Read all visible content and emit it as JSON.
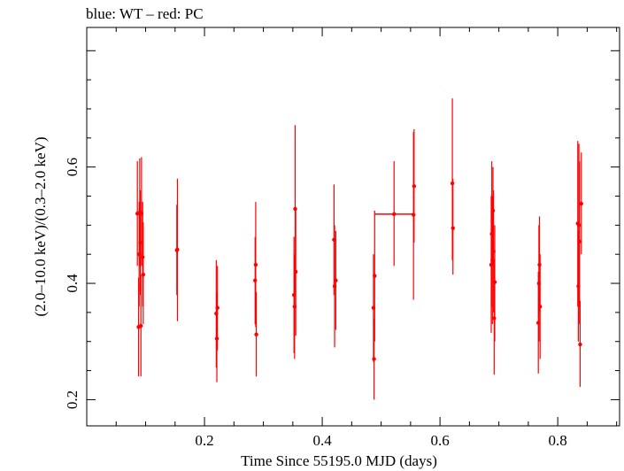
{
  "chart_data": {
    "type": "scatter",
    "title": "blue: WT – red: PC",
    "xlabel": "Time Since 55195.0 MJD (days)",
    "ylabel": "(2.0–10.0 keV)/(0.3–2.0 keV)",
    "xlim": [
      0.0,
      0.905
    ],
    "ylim": [
      0.155,
      0.84
    ],
    "x_ticks": [
      0.2,
      0.4,
      0.6,
      0.8
    ],
    "x_tick_labels": [
      "0.2",
      "0.4",
      "0.6",
      "0.8"
    ],
    "y_ticks": [
      0.2,
      0.4,
      0.6
    ],
    "y_tick_labels": [
      "0.2",
      "0.4",
      "0.6"
    ],
    "grid": false,
    "series": [
      {
        "color": "#ff0000",
        "points": [
          {
            "x": 0.086,
            "y": 0.52,
            "lo": 0.43,
            "hi": 0.61
          },
          {
            "x": 0.088,
            "y": 0.325,
            "lo": 0.24,
            "hi": 0.41
          },
          {
            "x": 0.089,
            "y": 0.45,
            "lo": 0.36,
            "hi": 0.54
          },
          {
            "x": 0.09,
            "y": 0.522,
            "lo": 0.43,
            "hi": 0.615
          },
          {
            "x": 0.091,
            "y": 0.47,
            "lo": 0.38,
            "hi": 0.56
          },
          {
            "x": 0.092,
            "y": 0.327,
            "lo": 0.24,
            "hi": 0.415
          },
          {
            "x": 0.093,
            "y": 0.52,
            "lo": 0.43,
            "hi": 0.617
          },
          {
            "x": 0.095,
            "y": 0.445,
            "lo": 0.36,
            "hi": 0.54
          },
          {
            "x": 0.096,
            "y": 0.415,
            "lo": 0.33,
            "hi": 0.505
          },
          {
            "x": 0.153,
            "y": 0.457,
            "lo": 0.38,
            "hi": 0.535
          },
          {
            "x": 0.154,
            "y": 0.458,
            "lo": 0.335,
            "hi": 0.58
          },
          {
            "x": 0.22,
            "y": 0.348,
            "lo": 0.255,
            "hi": 0.44
          },
          {
            "x": 0.221,
            "y": 0.305,
            "lo": 0.23,
            "hi": 0.385
          },
          {
            "x": 0.222,
            "y": 0.358,
            "lo": 0.285,
            "hi": 0.43
          },
          {
            "x": 0.286,
            "y": 0.405,
            "lo": 0.33,
            "hi": 0.48
          },
          {
            "x": 0.287,
            "y": 0.432,
            "lo": 0.325,
            "hi": 0.54
          },
          {
            "x": 0.288,
            "y": 0.312,
            "lo": 0.24,
            "hi": 0.385
          },
          {
            "x": 0.352,
            "y": 0.38,
            "lo": 0.28,
            "hi": 0.48
          },
          {
            "x": 0.353,
            "y": 0.36,
            "lo": 0.27,
            "hi": 0.45
          },
          {
            "x": 0.354,
            "y": 0.528,
            "lo": 0.385,
            "hi": 0.672
          },
          {
            "x": 0.355,
            "y": 0.42,
            "lo": 0.31,
            "hi": 0.53
          },
          {
            "x": 0.42,
            "y": 0.475,
            "lo": 0.38,
            "hi": 0.57
          },
          {
            "x": 0.421,
            "y": 0.395,
            "lo": 0.29,
            "hi": 0.5
          },
          {
            "x": 0.423,
            "y": 0.405,
            "lo": 0.32,
            "hi": 0.49
          },
          {
            "x": 0.487,
            "y": 0.358,
            "lo": 0.265,
            "hi": 0.45
          },
          {
            "x": 0.488,
            "y": 0.27,
            "lo": 0.2,
            "hi": 0.34
          },
          {
            "x": 0.489,
            "y": 0.413,
            "lo": 0.3,
            "hi": 0.525
          },
          {
            "x": 0.522,
            "y": 0.519,
            "lo": 0.43,
            "hi": 0.61,
            "xlo": 0.489,
            "xhi": 0.555
          },
          {
            "x": 0.555,
            "y": 0.518,
            "lo": 0.372,
            "hi": 0.66
          },
          {
            "x": 0.556,
            "y": 0.567,
            "lo": 0.47,
            "hi": 0.665
          },
          {
            "x": 0.621,
            "y": 0.572,
            "lo": 0.44,
            "hi": 0.718
          },
          {
            "x": 0.622,
            "y": 0.495,
            "lo": 0.415,
            "hi": 0.58
          },
          {
            "x": 0.687,
            "y": 0.432,
            "lo": 0.315,
            "hi": 0.55
          },
          {
            "x": 0.688,
            "y": 0.485,
            "lo": 0.36,
            "hi": 0.61
          },
          {
            "x": 0.689,
            "y": 0.44,
            "lo": 0.33,
            "hi": 0.55
          },
          {
            "x": 0.69,
            "y": 0.525,
            "lo": 0.43,
            "hi": 0.6
          },
          {
            "x": 0.691,
            "y": 0.455,
            "lo": 0.35,
            "hi": 0.56
          },
          {
            "x": 0.692,
            "y": 0.34,
            "lo": 0.243,
            "hi": 0.44
          },
          {
            "x": 0.693,
            "y": 0.402,
            "lo": 0.3,
            "hi": 0.5
          },
          {
            "x": 0.767,
            "y": 0.332,
            "lo": 0.245,
            "hi": 0.42
          },
          {
            "x": 0.768,
            "y": 0.4,
            "lo": 0.3,
            "hi": 0.5
          },
          {
            "x": 0.769,
            "y": 0.432,
            "lo": 0.35,
            "hi": 0.515
          },
          {
            "x": 0.77,
            "y": 0.36,
            "lo": 0.27,
            "hi": 0.45
          },
          {
            "x": 0.834,
            "y": 0.503,
            "lo": 0.36,
            "hi": 0.645
          },
          {
            "x": 0.835,
            "y": 0.395,
            "lo": 0.3,
            "hi": 0.49
          },
          {
            "x": 0.836,
            "y": 0.5,
            "lo": 0.36,
            "hi": 0.64
          },
          {
            "x": 0.837,
            "y": 0.472,
            "lo": 0.33,
            "hi": 0.61
          },
          {
            "x": 0.838,
            "y": 0.295,
            "lo": 0.222,
            "hi": 0.37
          },
          {
            "x": 0.84,
            "y": 0.537,
            "lo": 0.45,
            "hi": 0.625
          }
        ]
      }
    ]
  }
}
